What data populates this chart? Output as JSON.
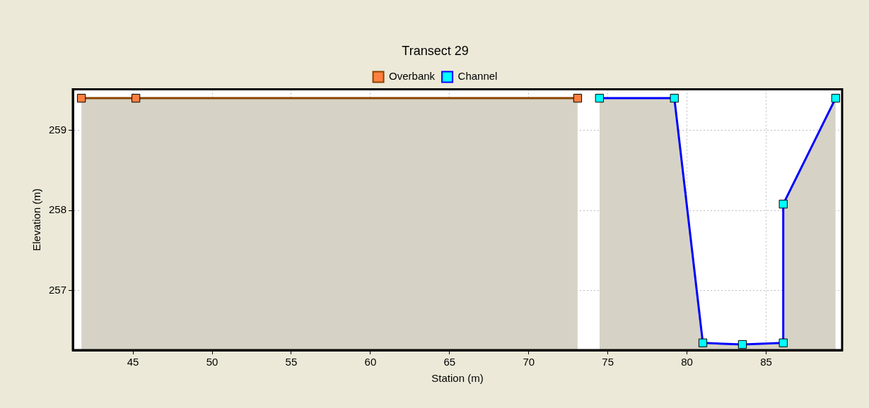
{
  "chart_data": {
    "type": "area",
    "title": "Transect 29",
    "xlabel": "Station (m)",
    "ylabel": "Elevation (m)",
    "xlim": [
      41.2,
      89.8
    ],
    "ylim": [
      256.26,
      259.51
    ],
    "xticks": [
      45,
      50,
      55,
      60,
      65,
      70,
      75,
      80,
      85
    ],
    "yticks": [
      257,
      258,
      259
    ],
    "grid": true,
    "legend": "top",
    "marker": "square",
    "line_style": "solid",
    "series": [
      {
        "name": "Overbank",
        "color": "#8b4500",
        "colors": [
          "#ff7f3f",
          "#ff7f3f",
          "#ff7f3f"
        ],
        "x": [
          41.74,
          45.18,
          73.09
        ],
        "values": [
          259.4,
          259.4,
          259.4
        ]
      },
      {
        "name": "Channel",
        "color": "#0000ff",
        "colors": [
          "#00ffff",
          "#00ffff",
          "#00ffff",
          "#00ffff",
          "#00ffff",
          "#00ffff",
          "#00ffff"
        ],
        "x": [
          74.47,
          79.2,
          81.0,
          83.5,
          86.08,
          86.08,
          89.39
        ],
        "values": [
          259.4,
          259.4,
          256.35,
          256.33,
          256.35,
          258.08,
          259.4
        ]
      }
    ]
  }
}
